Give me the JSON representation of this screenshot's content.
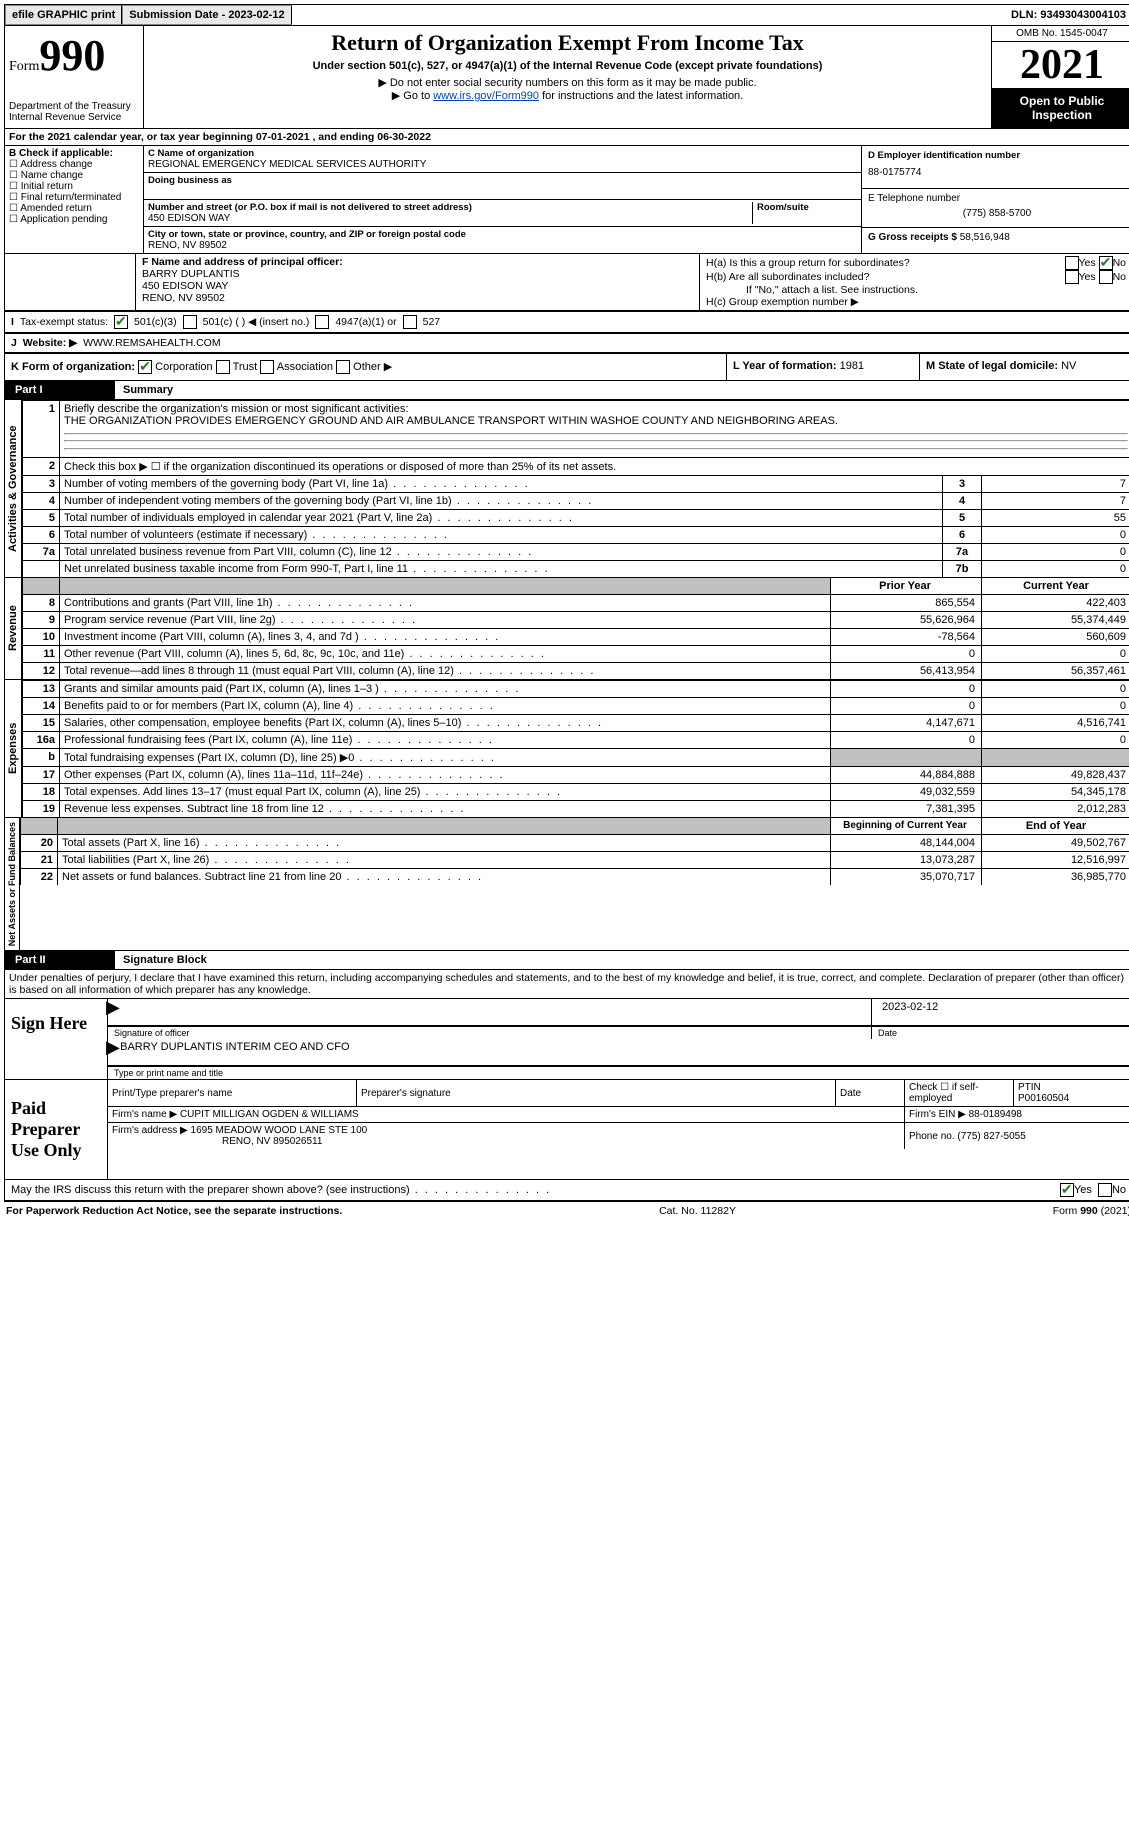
{
  "topbar": {
    "efile": "efile GRAPHIC print",
    "subdate_lbl": "Submission Date - 2023-02-12",
    "dln": "DLN: 93493043004103"
  },
  "header": {
    "form": "Form",
    "num": "990",
    "dept": "Department of the Treasury Internal Revenue Service",
    "title": "Return of Organization Exempt From Income Tax",
    "sub": "Under section 501(c), 527, or 4947(a)(1) of the Internal Revenue Code (except private foundations)",
    "note1": "▶ Do not enter social security numbers on this form as it may be made public.",
    "note2_pre": "▶ Go to ",
    "note2_link": "www.irs.gov/Form990",
    "note2_post": " for instructions and the latest information.",
    "omb": "OMB No. 1545-0047",
    "year": "2021",
    "inspect": "Open to Public Inspection"
  },
  "A": "For the 2021 calendar year, or tax year beginning 07-01-2021    , and ending 06-30-2022",
  "B": {
    "hdr": "B Check if applicable:",
    "items": [
      "Address change",
      "Name change",
      "Initial return",
      "Final return/terminated",
      "Amended return",
      "Application pending"
    ]
  },
  "C": {
    "name_lbl": "C Name of organization",
    "name": "REGIONAL EMERGENCY MEDICAL SERVICES AUTHORITY",
    "dba_lbl": "Doing business as",
    "addr_lbl": "Number and street (or P.O. box if mail is not delivered to street address)",
    "room_lbl": "Room/suite",
    "addr": "450 EDISON WAY",
    "city_lbl": "City or town, state or province, country, and ZIP or foreign postal code",
    "city": "RENO, NV  89502"
  },
  "D": {
    "lbl": "D Employer identification number",
    "val": "88-0175774"
  },
  "E": {
    "lbl": "E Telephone number",
    "val": "(775) 858-5700"
  },
  "G": {
    "lbl": "G Gross receipts $",
    "val": "58,516,948"
  },
  "F": {
    "lbl": "F  Name and address of principal officer:",
    "name": "BARRY DUPLANTIS",
    "addr1": "450 EDISON WAY",
    "addr2": "RENO, NV  89502"
  },
  "H": {
    "a": "H(a)  Is this a group return for subordinates?",
    "b": "H(b)  Are all subordinates included?",
    "bnote": "If \"No,\" attach a list. See instructions.",
    "c": "H(c)  Group exemption number ▶"
  },
  "I": {
    "lbl": "Tax-exempt status:",
    "o1": "501(c)(3)",
    "o2": "501(c) (  ) ◀ (insert no.)",
    "o3": "4947(a)(1) or",
    "o4": "527"
  },
  "J": {
    "lbl": "Website: ▶",
    "val": "WWW.REMSAHEALTH.COM"
  },
  "K": {
    "lbl": "K Form of organization:",
    "o": [
      "Corporation",
      "Trust",
      "Association",
      "Other ▶"
    ]
  },
  "L": {
    "lbl": "L Year of formation:",
    "val": "1981"
  },
  "M": {
    "lbl": "M State of legal domicile:",
    "val": "NV"
  },
  "part1": {
    "bar": "Part I",
    "lbl": "Summary"
  },
  "p1": {
    "l1": "Briefly describe the organization's mission or most significant activities:",
    "l1v": "THE ORGANIZATION PROVIDES EMERGENCY GROUND AND AIR AMBULANCE TRANSPORT WITHIN WASHOE COUNTY AND NEIGHBORING AREAS.",
    "l2": "Check this box ▶ ☐  if the organization discontinued its operations or disposed of more than 25% of its net assets.",
    "rows_ag": [
      {
        "n": "3",
        "t": "Number of voting members of the governing body (Part VI, line 1a)",
        "box": "3",
        "v": "7"
      },
      {
        "n": "4",
        "t": "Number of independent voting members of the governing body (Part VI, line 1b)",
        "box": "4",
        "v": "7"
      },
      {
        "n": "5",
        "t": "Total number of individuals employed in calendar year 2021 (Part V, line 2a)",
        "box": "5",
        "v": "55"
      },
      {
        "n": "6",
        "t": "Total number of volunteers (estimate if necessary)",
        "box": "6",
        "v": "0"
      },
      {
        "n": "7a",
        "t": "Total unrelated business revenue from Part VIII, column (C), line 12",
        "box": "7a",
        "v": "0"
      },
      {
        "n": "",
        "t": "Net unrelated business taxable income from Form 990-T, Part I, line 11",
        "box": "7b",
        "v": "0"
      }
    ],
    "colhdr": {
      "py": "Prior Year",
      "cy": "Current Year"
    },
    "rows_rev": [
      {
        "n": "8",
        "t": "Contributions and grants (Part VIII, line 1h)",
        "py": "865,554",
        "cy": "422,403"
      },
      {
        "n": "9",
        "t": "Program service revenue (Part VIII, line 2g)",
        "py": "55,626,964",
        "cy": "55,374,449"
      },
      {
        "n": "10",
        "t": "Investment income (Part VIII, column (A), lines 3, 4, and 7d )",
        "py": "-78,564",
        "cy": "560,609"
      },
      {
        "n": "11",
        "t": "Other revenue (Part VIII, column (A), lines 5, 6d, 8c, 9c, 10c, and 11e)",
        "py": "0",
        "cy": "0"
      },
      {
        "n": "12",
        "t": "Total revenue—add lines 8 through 11 (must equal Part VIII, column (A), line 12)",
        "py": "56,413,954",
        "cy": "56,357,461"
      }
    ],
    "rows_exp": [
      {
        "n": "13",
        "t": "Grants and similar amounts paid (Part IX, column (A), lines 1–3 )",
        "py": "0",
        "cy": "0"
      },
      {
        "n": "14",
        "t": "Benefits paid to or for members (Part IX, column (A), line 4)",
        "py": "0",
        "cy": "0"
      },
      {
        "n": "15",
        "t": "Salaries, other compensation, employee benefits (Part IX, column (A), lines 5–10)",
        "py": "4,147,671",
        "cy": "4,516,741"
      },
      {
        "n": "16a",
        "t": "Professional fundraising fees (Part IX, column (A), line 11e)",
        "py": "0",
        "cy": "0"
      },
      {
        "n": "b",
        "t": "Total fundraising expenses (Part IX, column (D), line 25) ▶0",
        "py": "GREY",
        "cy": "GREY"
      },
      {
        "n": "17",
        "t": "Other expenses (Part IX, column (A), lines 11a–11d, 11f–24e)",
        "py": "44,884,888",
        "cy": "49,828,437"
      },
      {
        "n": "18",
        "t": "Total expenses. Add lines 13–17 (must equal Part IX, column (A), line 25)",
        "py": "49,032,559",
        "cy": "54,345,178"
      },
      {
        "n": "19",
        "t": "Revenue less expenses. Subtract line 18 from line 12",
        "py": "7,381,395",
        "cy": "2,012,283"
      }
    ],
    "colhdr2": {
      "py": "Beginning of Current Year",
      "cy": "End of Year"
    },
    "rows_na": [
      {
        "n": "20",
        "t": "Total assets (Part X, line 16)",
        "py": "48,144,004",
        "cy": "49,502,767"
      },
      {
        "n": "21",
        "t": "Total liabilities (Part X, line 26)",
        "py": "13,073,287",
        "cy": "12,516,997"
      },
      {
        "n": "22",
        "t": "Net assets or fund balances. Subtract line 21 from line 20",
        "py": "35,070,717",
        "cy": "36,985,770"
      }
    ],
    "sides": {
      "ag": "Activities & Governance",
      "rev": "Revenue",
      "exp": "Expenses",
      "na": "Net Assets or Fund Balances"
    }
  },
  "part2": {
    "bar": "Part II",
    "lbl": "Signature Block"
  },
  "penalty": "Under penalties of perjury, I declare that I have examined this return, including accompanying schedules and statements, and to the best of my knowledge and belief, it is true, correct, and complete. Declaration of preparer (other than officer) is based on all information of which preparer has any knowledge.",
  "sign": {
    "here": "Sign Here",
    "sig": "Signature of officer",
    "date": "Date",
    "dateval": "2023-02-12",
    "name": "BARRY DUPLANTIS  INTERIM CEO AND CFO",
    "namelbl": "Type or print name and title"
  },
  "prep": {
    "hdr": "Paid Preparer Use Only",
    "c1": "Print/Type preparer's name",
    "c2": "Preparer's signature",
    "c3": "Date",
    "c4": "Check ☐ if self-employed",
    "c5": "PTIN",
    "ptin": "P00160504",
    "firm_lbl": "Firm's name   ▶",
    "firm": "CUPIT MILLIGAN OGDEN & WILLIAMS",
    "ein_lbl": "Firm's EIN ▶",
    "ein": "88-0189498",
    "addr_lbl": "Firm's address ▶",
    "addr": "1695 MEADOW WOOD LANE STE 100",
    "addr2": "RENO, NV  895026511",
    "ph_lbl": "Phone no.",
    "ph": "(775) 827-5055"
  },
  "discuss": "May the IRS discuss this return with the preparer shown above? (see instructions)",
  "footer": {
    "l": "For Paperwork Reduction Act Notice, see the separate instructions.",
    "m": "Cat. No. 11282Y",
    "r": "Form 990 (2021)"
  }
}
